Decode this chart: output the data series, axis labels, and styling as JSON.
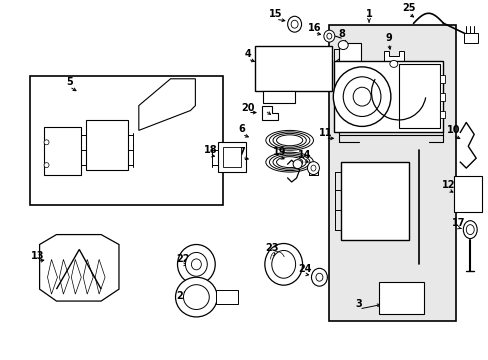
{
  "bg_color": "#ffffff",
  "line_color": "#000000",
  "gray_fill": "#e8e8e8",
  "fig_width": 4.89,
  "fig_height": 3.6,
  "dpi": 100
}
